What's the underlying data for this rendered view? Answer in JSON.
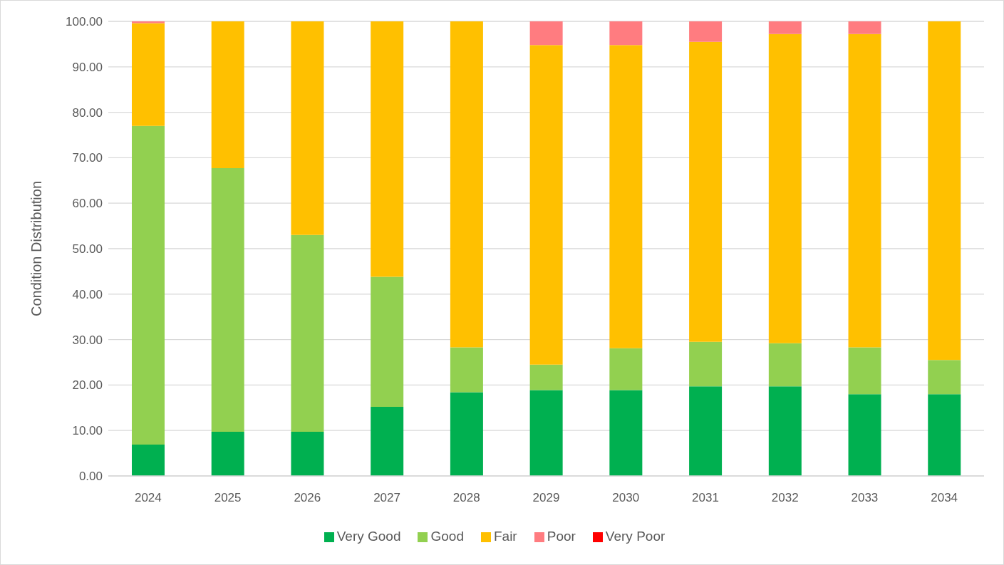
{
  "chart_data": {
    "type": "bar",
    "stacked": true,
    "ylabel": "Condition Distribution",
    "categories": [
      "2024",
      "2025",
      "2026",
      "2027",
      "2028",
      "2029",
      "2030",
      "2031",
      "2032",
      "2033",
      "2034"
    ],
    "series": [
      {
        "name": "Very Good",
        "color": "#00b050",
        "values": [
          6.9,
          9.7,
          9.7,
          15.2,
          18.4,
          18.9,
          18.9,
          19.7,
          19.7,
          18.0,
          18.0
        ]
      },
      {
        "name": "Good",
        "color": "#92d050",
        "values": [
          70.1,
          58.0,
          43.3,
          28.6,
          9.9,
          5.6,
          9.2,
          9.8,
          9.5,
          10.3,
          7.5
        ]
      },
      {
        "name": "Fair",
        "color": "#ffc000",
        "values": [
          22.6,
          32.3,
          47.0,
          56.2,
          71.7,
          70.3,
          66.7,
          66.0,
          68.0,
          68.9,
          74.5
        ]
      },
      {
        "name": "Poor",
        "color": "#ff7c80",
        "values": [
          0.4,
          0,
          0,
          0,
          0,
          5.2,
          5.2,
          4.5,
          2.8,
          2.8,
          0
        ]
      },
      {
        "name": "Very Poor",
        "color": "#ff0000",
        "values": [
          0,
          0,
          0,
          0,
          0,
          0,
          0,
          0,
          0,
          0,
          0
        ]
      }
    ],
    "ylim": [
      0,
      100
    ],
    "yticks": [
      {
        "value": 0,
        "label": "0.00"
      },
      {
        "value": 10,
        "label": "10.00"
      },
      {
        "value": 20,
        "label": "20.00"
      },
      {
        "value": 30,
        "label": "30.00"
      },
      {
        "value": 40,
        "label": "40.00"
      },
      {
        "value": 50,
        "label": "50.00"
      },
      {
        "value": 60,
        "label": "60.00"
      },
      {
        "value": 70,
        "label": "70.00"
      },
      {
        "value": 80,
        "label": "80.00"
      },
      {
        "value": 90,
        "label": "90.00"
      },
      {
        "value": 100,
        "label": "100.00"
      }
    ],
    "grid": "y",
    "legend": "bottom"
  }
}
